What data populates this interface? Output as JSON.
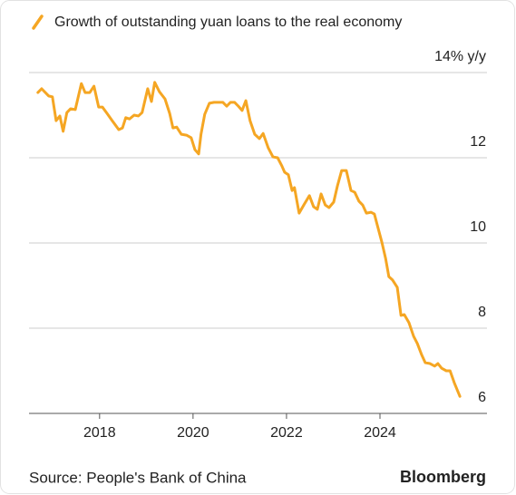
{
  "chart_data": {
    "type": "line",
    "source": "Source: People's Bank of China",
    "brand": "Bloomberg",
    "x": [
      2016.68,
      2016.76,
      2016.91,
      2016.99,
      2017.07,
      2017.15,
      2017.22,
      2017.3,
      2017.38,
      2017.48,
      2017.61,
      2017.69,
      2017.79,
      2017.88,
      2017.98,
      2018.06,
      2018.16,
      2018.27,
      2018.41,
      2018.49,
      2018.56,
      2018.64,
      2018.74,
      2018.83,
      2018.91,
      2019.03,
      2019.11,
      2019.18,
      2019.28,
      2019.4,
      2019.5,
      2019.57,
      2019.65,
      2019.75,
      2019.86,
      2019.96,
      2020.04,
      2020.12,
      2020.17,
      2020.25,
      2020.35,
      2020.45,
      2020.54,
      2020.64,
      2020.72,
      2020.8,
      2020.89,
      2020.97,
      2021.05,
      2021.13,
      2021.22,
      2021.32,
      2021.42,
      2021.5,
      2021.61,
      2021.71,
      2021.81,
      2021.9,
      2021.96,
      2022.04,
      2022.12,
      2022.17,
      2022.27,
      2022.37,
      2022.49,
      2022.58,
      2022.66,
      2022.74,
      2022.83,
      2022.91,
      2023.01,
      2023.09,
      2023.18,
      2023.28,
      2023.38,
      2023.46,
      2023.55,
      2023.63,
      2023.71,
      2023.81,
      2023.88,
      2023.94,
      2024.04,
      2024.12,
      2024.19,
      2024.27,
      2024.37,
      2024.45,
      2024.52,
      2024.62,
      2024.72,
      2024.8,
      2024.89,
      2024.97,
      2025.07,
      2025.17,
      2025.24,
      2025.32,
      2025.42,
      2025.5,
      2025.59,
      2025.71
    ],
    "series": [
      {
        "name": "Growth of outstanding yuan loans to the real economy",
        "color": "#f5a623",
        "values": [
          13.53,
          13.62,
          13.45,
          13.43,
          12.87,
          12.98,
          12.62,
          13.06,
          13.15,
          13.13,
          13.74,
          13.53,
          13.53,
          13.68,
          13.19,
          13.19,
          13.04,
          12.87,
          12.66,
          12.7,
          12.94,
          12.91,
          13.0,
          12.98,
          13.06,
          13.62,
          13.32,
          13.77,
          13.55,
          13.38,
          13.04,
          12.7,
          12.72,
          12.55,
          12.53,
          12.47,
          12.19,
          12.09,
          12.55,
          13.02,
          13.28,
          13.3,
          13.3,
          13.3,
          13.21,
          13.3,
          13.3,
          13.21,
          13.11,
          13.34,
          12.87,
          12.55,
          12.45,
          12.57,
          12.23,
          12.02,
          12.0,
          11.81,
          11.66,
          11.6,
          11.23,
          11.3,
          10.7,
          10.89,
          11.11,
          10.85,
          10.79,
          11.15,
          10.89,
          10.83,
          10.96,
          11.34,
          11.7,
          11.7,
          11.23,
          11.19,
          10.98,
          10.89,
          10.7,
          10.72,
          10.68,
          10.43,
          10.02,
          9.64,
          9.21,
          9.13,
          8.96,
          8.3,
          8.32,
          8.13,
          7.81,
          7.64,
          7.38,
          7.19,
          7.17,
          7.11,
          7.17,
          7.06,
          7.0,
          7.0,
          6.72,
          6.4
        ]
      }
    ],
    "xlim": [
      2016.49,
      2026.29
    ],
    "xticks": [
      2018,
      2020,
      2022,
      2024
    ],
    "ylim": [
      6,
      14
    ],
    "yticks": [
      {
        "value": 14,
        "label": "14% y/y"
      },
      12,
      10,
      8,
      6
    ],
    "grid": true
  }
}
